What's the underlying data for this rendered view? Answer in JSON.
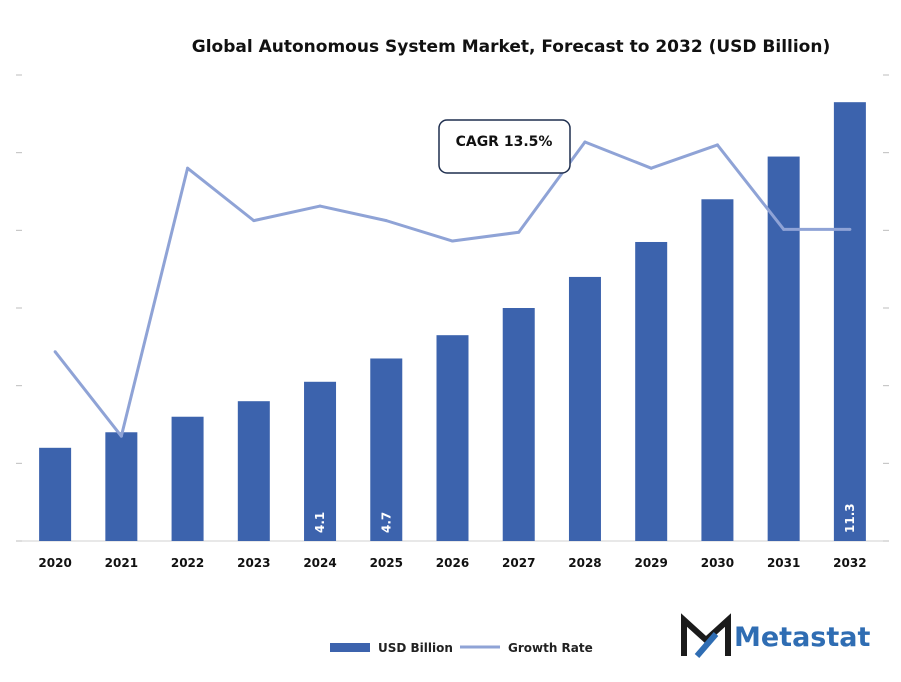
{
  "chart_data": {
    "type": "bar",
    "title": "Global Autonomous System Market, Forecast to 2032 (USD Billion)",
    "categories": [
      "2020",
      "2021",
      "2022",
      "2023",
      "2024",
      "2025",
      "2026",
      "2027",
      "2028",
      "2029",
      "2030",
      "2031",
      "2032"
    ],
    "series": [
      {
        "name": "USD Billion",
        "type": "bar",
        "color": "#3c63ad",
        "values": [
          2.4,
          2.8,
          3.2,
          3.6,
          4.1,
          4.7,
          5.3,
          6.0,
          6.8,
          7.7,
          8.8,
          9.9,
          11.3
        ],
        "labels": [
          "",
          "",
          "",
          "",
          "4.1",
          "4.7",
          "",
          "",
          "",
          "",
          "",
          "",
          "11.3"
        ]
      },
      {
        "name": "Growth Rate",
        "type": "line",
        "color": "#8fa3d6",
        "values": [
          6.5,
          3.6,
          12.8,
          11.0,
          11.5,
          11.0,
          10.3,
          10.6,
          13.7,
          12.8,
          13.6,
          10.7,
          10.7
        ]
      }
    ],
    "ylim": [
      0,
      12
    ],
    "y2lim": [
      0,
      16
    ],
    "annotations": [
      {
        "text": "CAGR 13.5%"
      }
    ],
    "legend_position": "bottom-center",
    "grid": false
  },
  "brand": {
    "name": "Metastat",
    "color": "#2f6db3"
  }
}
